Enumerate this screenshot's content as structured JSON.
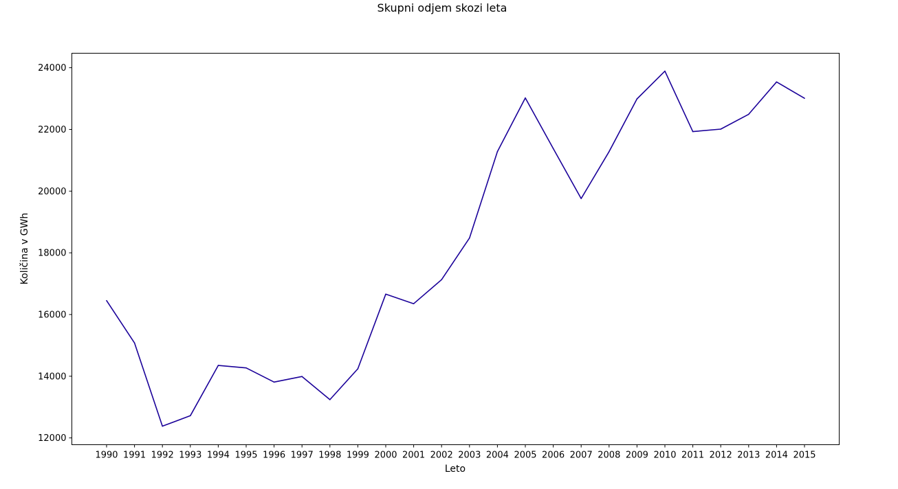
{
  "chart_data": {
    "type": "line",
    "title": "Skupni odjem skozi leta",
    "xlabel": "Leto",
    "ylabel": "Količina v GWh",
    "x": [
      "1990",
      "1991",
      "1992",
      "1993",
      "1994",
      "1995",
      "1996",
      "1997",
      "1998",
      "1999",
      "2000",
      "2001",
      "2002",
      "2003",
      "2004",
      "2005",
      "2006",
      "2007",
      "2008",
      "2009",
      "2010",
      "2011",
      "2012",
      "2013",
      "2014",
      "2015"
    ],
    "series": [
      {
        "values": [
          16450,
          15080,
          12380,
          12720,
          14350,
          14270,
          13810,
          13990,
          13240,
          14240,
          16660,
          16350,
          17130,
          18480,
          21280,
          23020,
          21380,
          19760,
          21280,
          22990,
          23890,
          21930,
          22010,
          22490,
          23540,
          23010
        ],
        "color": "#1a0099"
      }
    ],
    "yticks": [
      12000,
      14000,
      16000,
      18000,
      20000,
      22000,
      24000
    ],
    "ylim": [
      11780,
      24470
    ],
    "grid": false,
    "legend": "none"
  }
}
